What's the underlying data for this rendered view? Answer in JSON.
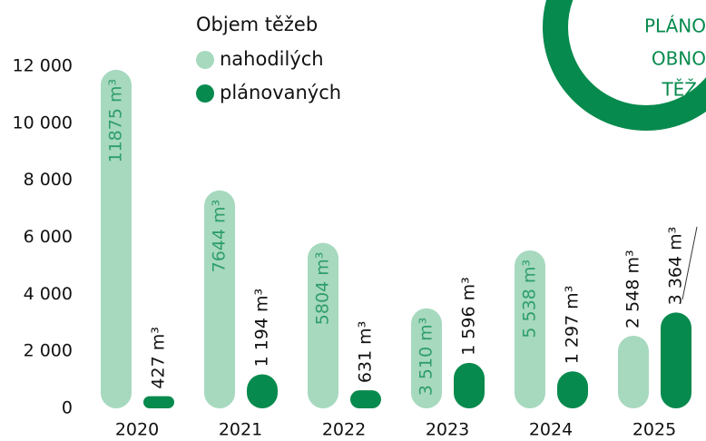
{
  "chart_data": {
    "type": "bar",
    "legend_title": "Objem těžeb",
    "annotations": [
      "PLÁNO",
      "OBNO",
      "TĚŽ"
    ],
    "categories": [
      "2020",
      "2021",
      "2022",
      "2023",
      "2024",
      "2025"
    ],
    "series": [
      {
        "name": "nahodilých",
        "color": "#a7d9bf",
        "label_color": "#2e9e6a",
        "values": [
          11875,
          7644,
          5804,
          3510,
          5538,
          2548
        ],
        "value_labels": [
          "11875 m³",
          "7644 m³",
          "5804 m³",
          "3 510 m³",
          "5 538 m³",
          "2 548 m³"
        ]
      },
      {
        "name": "plánovaných",
        "color": "#078a4d",
        "label_color": "#111111",
        "values": [
          427,
          1194,
          631,
          1596,
          1297,
          3364
        ],
        "value_labels": [
          "427 m³",
          "1 194 m³",
          "631 m³",
          "1 596 m³",
          "1 297 m³",
          "3 364 m³"
        ]
      }
    ],
    "ylim": [
      0,
      12000
    ],
    "yticks": [
      0,
      {
        "value": 2000,
        "label": "2 000"
      },
      {
        "value": 4000,
        "label": "4 000"
      },
      {
        "value": 6000,
        "label": "6 000"
      },
      {
        "value": 8000,
        "label": "8 000"
      },
      {
        "value": 10000,
        "label": "10 000"
      },
      {
        "value": 12000,
        "label": "12 000"
      }
    ]
  }
}
